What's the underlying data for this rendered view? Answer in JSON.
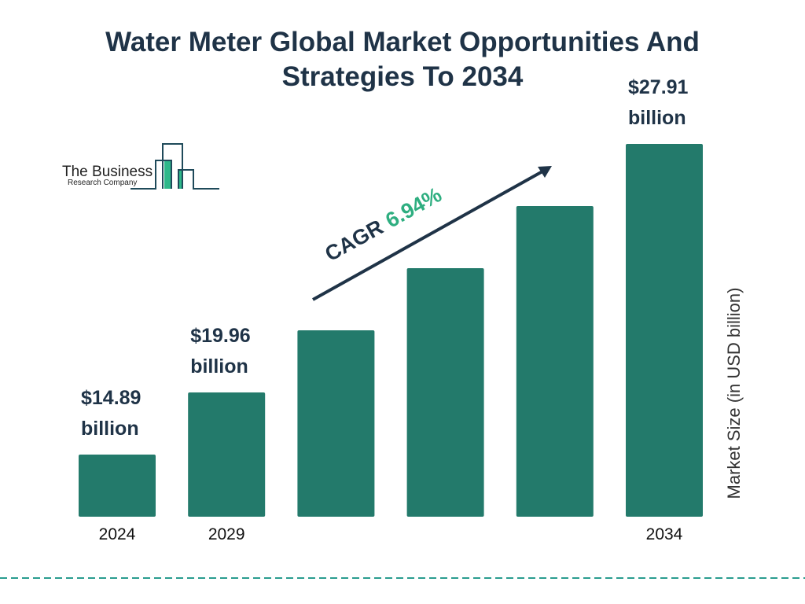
{
  "title_lines": [
    "Water Meter Global Market Opportunities And",
    "Strategies To 2034"
  ],
  "logo": {
    "line1": "The Business",
    "line2": "Research Company"
  },
  "chart_data": {
    "type": "bar",
    "title": "Water Meter Global Market Opportunities And Strategies To 2034",
    "categories": [
      "2024",
      "2029",
      "",
      "",
      "",
      "2034"
    ],
    "values": [
      14.89,
      19.96,
      null,
      null,
      null,
      27.91
    ],
    "data_labels": [
      [
        "$14.89",
        "billion"
      ],
      [
        "$19.96",
        "billion"
      ],
      null,
      null,
      null,
      [
        "$27.91",
        "billion"
      ]
    ],
    "ylabel": "Market Size (in USD billion)",
    "xlabel": "",
    "grid": false,
    "annotation": {
      "prefix": "CAGR",
      "value": "6.94%"
    },
    "colors": {
      "bar": "#237a6b",
      "title": "#1f3347",
      "cagr_value": "#2eae80",
      "divider": "#2a9d8f"
    }
  }
}
